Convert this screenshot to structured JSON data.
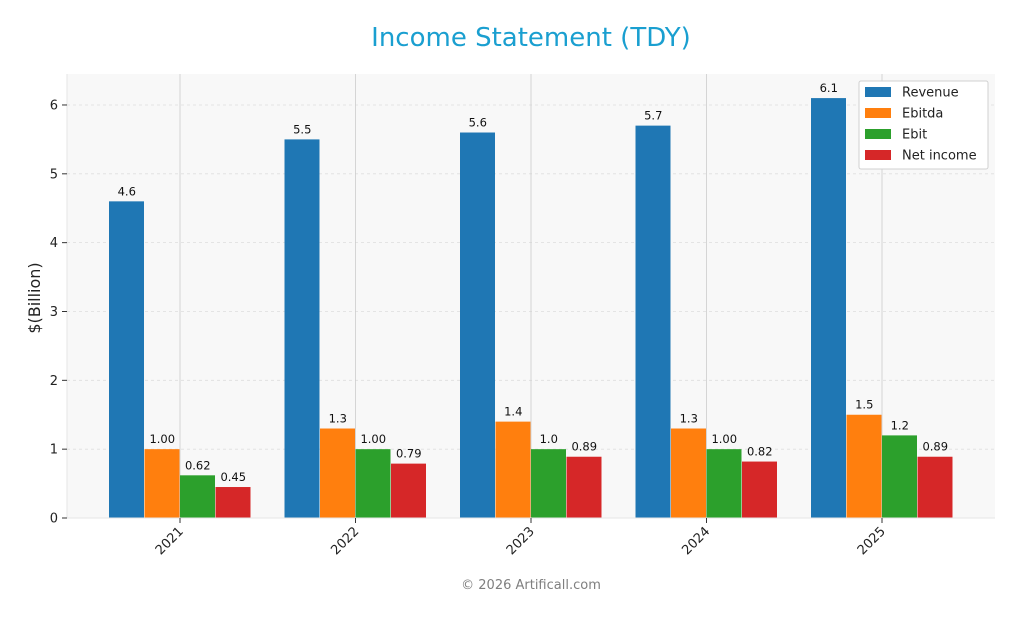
{
  "chart_data": {
    "type": "bar",
    "title": "Income Statement (TDY)",
    "xlabel": "",
    "ylabel": "$(Billion)",
    "categories": [
      "2021",
      "2022",
      "2023",
      "2024",
      "2025"
    ],
    "series": [
      {
        "name": "Revenue",
        "values": [
          4.6,
          5.5,
          5.6,
          5.7,
          6.1
        ],
        "labels": [
          "4.6",
          "5.5",
          "5.6",
          "5.7",
          "6.1"
        ],
        "color": "#1f77b4"
      },
      {
        "name": "Ebitda",
        "values": [
          1.0,
          1.3,
          1.4,
          1.3,
          1.5
        ],
        "labels": [
          "1.00",
          "1.3",
          "1.4",
          "1.3",
          "1.5"
        ],
        "color": "#ff7f0e"
      },
      {
        "name": "Ebit",
        "values": [
          0.62,
          1.0,
          1.0,
          1.0,
          1.2
        ],
        "labels": [
          "0.62",
          "1.00",
          "1.0",
          "1.00",
          "1.2"
        ],
        "color": "#2ca02c"
      },
      {
        "name": "Net income",
        "values": [
          0.45,
          0.79,
          0.89,
          0.82,
          0.89
        ],
        "labels": [
          "0.45",
          "0.79",
          "0.89",
          "0.82",
          "0.89"
        ],
        "color": "#d62728"
      }
    ],
    "ylim": [
      0,
      6.45
    ],
    "yticks": [
      0,
      1,
      2,
      3,
      4,
      5,
      6
    ],
    "grid": true,
    "legend": "top-right"
  },
  "footer": "© 2026 Artificall.com"
}
